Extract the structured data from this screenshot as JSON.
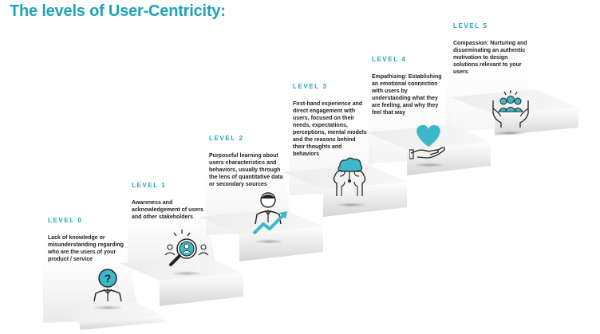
{
  "title": "The levels of User-Centricity:",
  "colors": {
    "accent": "#1fa3b8",
    "text": "#222222",
    "icon_fill": "#3db8c9"
  },
  "levels": [
    {
      "label": "LEVEL 0",
      "description": "Lack of knowledge or misunderstanding regarding who are the users of your product / service",
      "icon": "person-question-icon"
    },
    {
      "label": "LEVEL 1",
      "description": "Awareness and acknowledgement of users and other stakeholders",
      "icon": "magnifier-users-icon"
    },
    {
      "label": "LEVEL 2",
      "description": "Purposeful learning about users characteristics and behaviors, usually through the lens of quantitative data or secondary sources",
      "icon": "person-growth-chart-icon"
    },
    {
      "label": "LEVEL 3",
      "description": "First-hand experience and direct engagement with users, focused on their needs, expectations, perceptions, mental models and the reasons behind their thoughts and behaviors",
      "icon": "brain-head-icon"
    },
    {
      "label": "LEVEL 4",
      "description": "Empathizing: Establishing an emotional connection with users by understanding what they are feeling, and why they feel that way",
      "icon": "heart-hand-icon"
    },
    {
      "label": "LEVEL 5",
      "description": "Compassion: Nurturing and disseminating an authentic motivation to design solutions relevant to your users",
      "icon": "hands-group-icon"
    }
  ]
}
